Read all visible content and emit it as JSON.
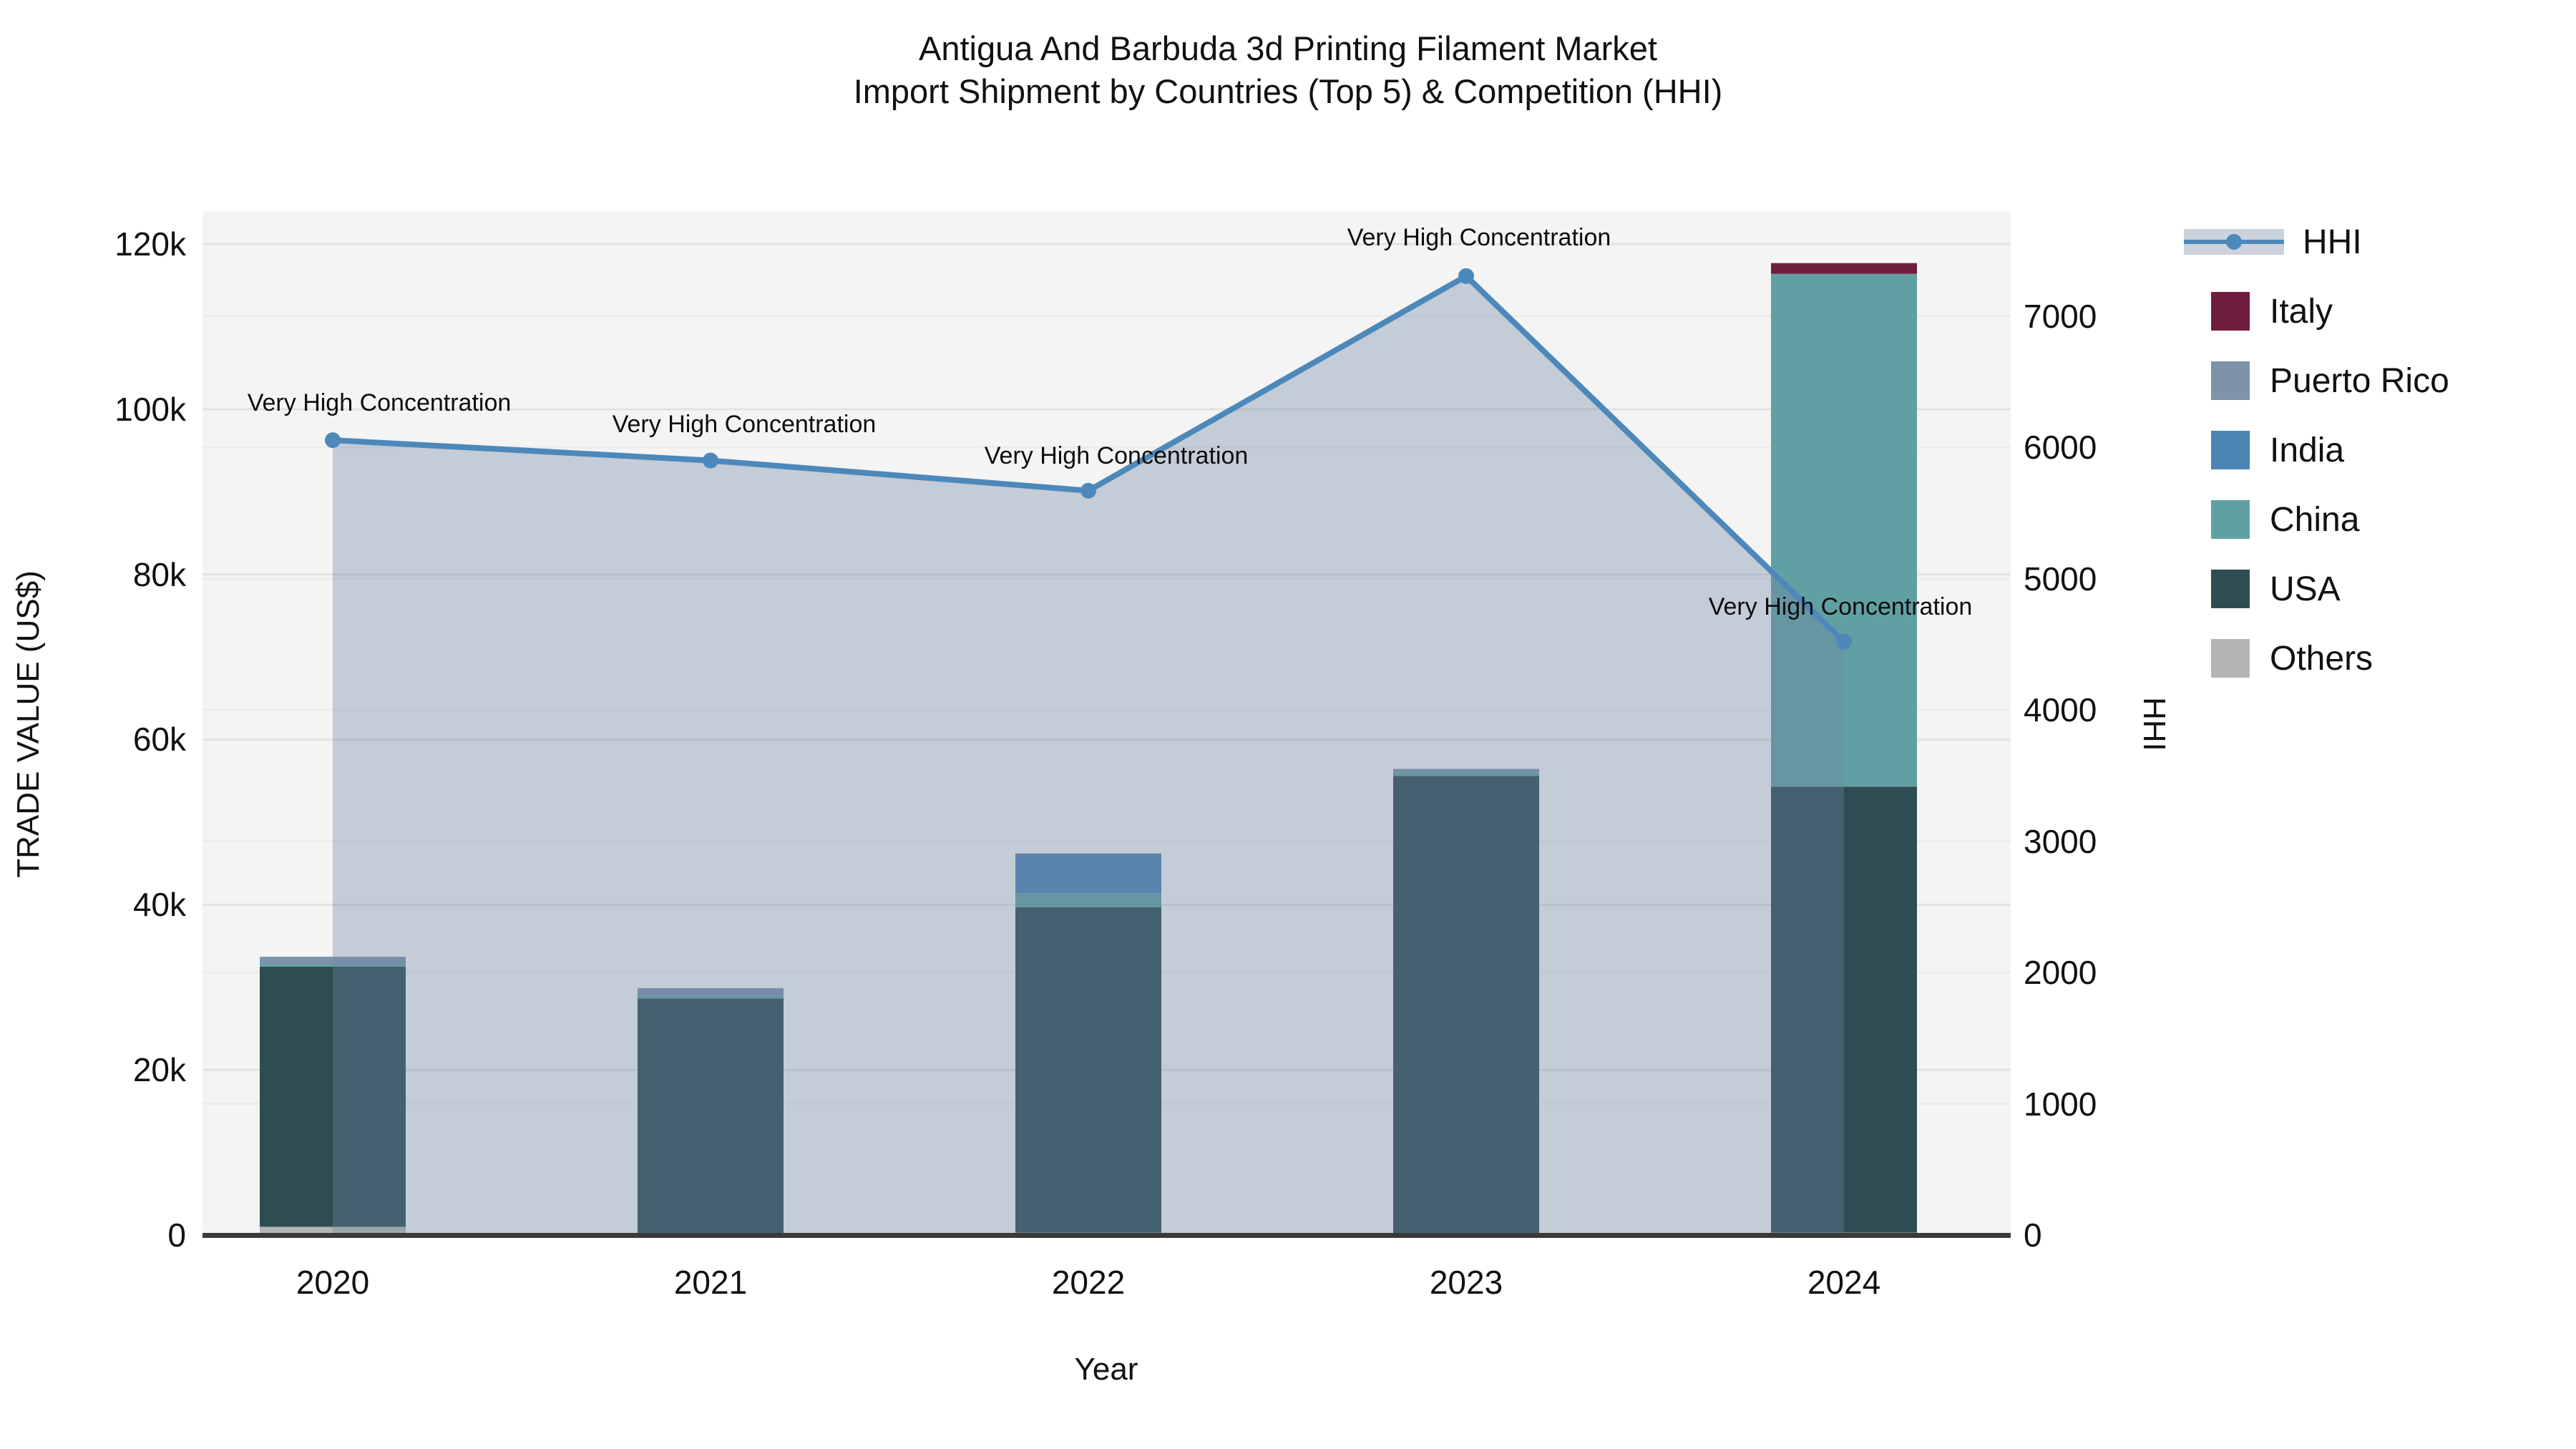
{
  "title": {
    "line1": "Antigua And Barbuda 3d Printing Filament Market",
    "line2": "Import Shipment by Countries (Top 5) & Competition (HHI)"
  },
  "axes": {
    "left": {
      "title": "TRADE VALUE (US$)",
      "ticks": [
        "0",
        "20k",
        "40k",
        "60k",
        "80k",
        "100k",
        "120k"
      ]
    },
    "right": {
      "title": "HHI",
      "ticks": [
        "0",
        "1000",
        "2000",
        "3000",
        "4000",
        "5000",
        "6000",
        "7000"
      ]
    },
    "x": {
      "title": "Year",
      "ticks": [
        "2020",
        "2021",
        "2022",
        "2023",
        "2024"
      ]
    }
  },
  "legend": {
    "items": [
      {
        "label": "HHI",
        "type": "line",
        "color": "#4d88ba"
      },
      {
        "label": "Italy",
        "type": "box",
        "color": "#6f1e3f"
      },
      {
        "label": "Puerto Rico",
        "type": "box",
        "color": "#7e93a8"
      },
      {
        "label": "India",
        "type": "box",
        "color": "#4c84b4"
      },
      {
        "label": "China",
        "type": "box",
        "color": "#61a0a2"
      },
      {
        "label": "USA",
        "type": "box",
        "color": "#2e4d52"
      },
      {
        "label": "Others",
        "type": "box",
        "color": "#b3b6b4"
      }
    ]
  },
  "chart_data": {
    "type": "combo-stacked-bar-and-line-area",
    "title": "Antigua And Barbuda 3d Printing Filament Market Import Shipment by Countries (Top 5) & Competition (HHI)",
    "x": [
      2020,
      2021,
      2022,
      2023,
      2024
    ],
    "xlabel": "Year",
    "bar_unit": "US$ (trade value)",
    "bar_series_bottom_to_top": [
      {
        "name": "Others",
        "color": "#b3b6b4",
        "values": [
          1000,
          150,
          300,
          200,
          300
        ]
      },
      {
        "name": "USA",
        "color": "#2e4d52",
        "values": [
          31500,
          28500,
          39400,
          55400,
          54000
        ]
      },
      {
        "name": "China",
        "color": "#61a0a2",
        "values": [
          300,
          350,
          1700,
          450,
          62100
        ]
      },
      {
        "name": "India",
        "color": "#4c84b4",
        "values": [
          0,
          0,
          4800,
          0,
          0
        ]
      },
      {
        "name": "Puerto Rico",
        "color": "#7e93a8",
        "values": [
          900,
          900,
          0,
          400,
          0
        ]
      },
      {
        "name": "Italy",
        "color": "#6f1e3f",
        "values": [
          0,
          0,
          0,
          0,
          1300
        ]
      }
    ],
    "bar_totals": [
      33700,
      29900,
      46200,
      56450,
      117700
    ],
    "line_series": {
      "name": "HHI",
      "color": "#4d88ba",
      "values": [
        6055,
        5900,
        5670,
        7305,
        4520
      ],
      "area_fill_rgba": "rgba(111,132,163,0.36)"
    },
    "annotations": [
      "Very High Concentration",
      "Very High Concentration",
      "Very High Concentration",
      "Very High Concentration",
      "Very High Concentration"
    ],
    "left_axis": {
      "label": "TRADE VALUE (US$)",
      "min": 0,
      "max": 124000,
      "tick_step": 20000
    },
    "right_axis": {
      "label": "HHI",
      "min": 0,
      "max": 7800,
      "tick_step": 1000
    },
    "style": {
      "plot_bg": "#f4f4f4",
      "grid_major": "#e2e2e2",
      "grid_minor": "#ececec",
      "baseline": "#3a3a3a",
      "legend_position": "right",
      "grid": true
    }
  }
}
